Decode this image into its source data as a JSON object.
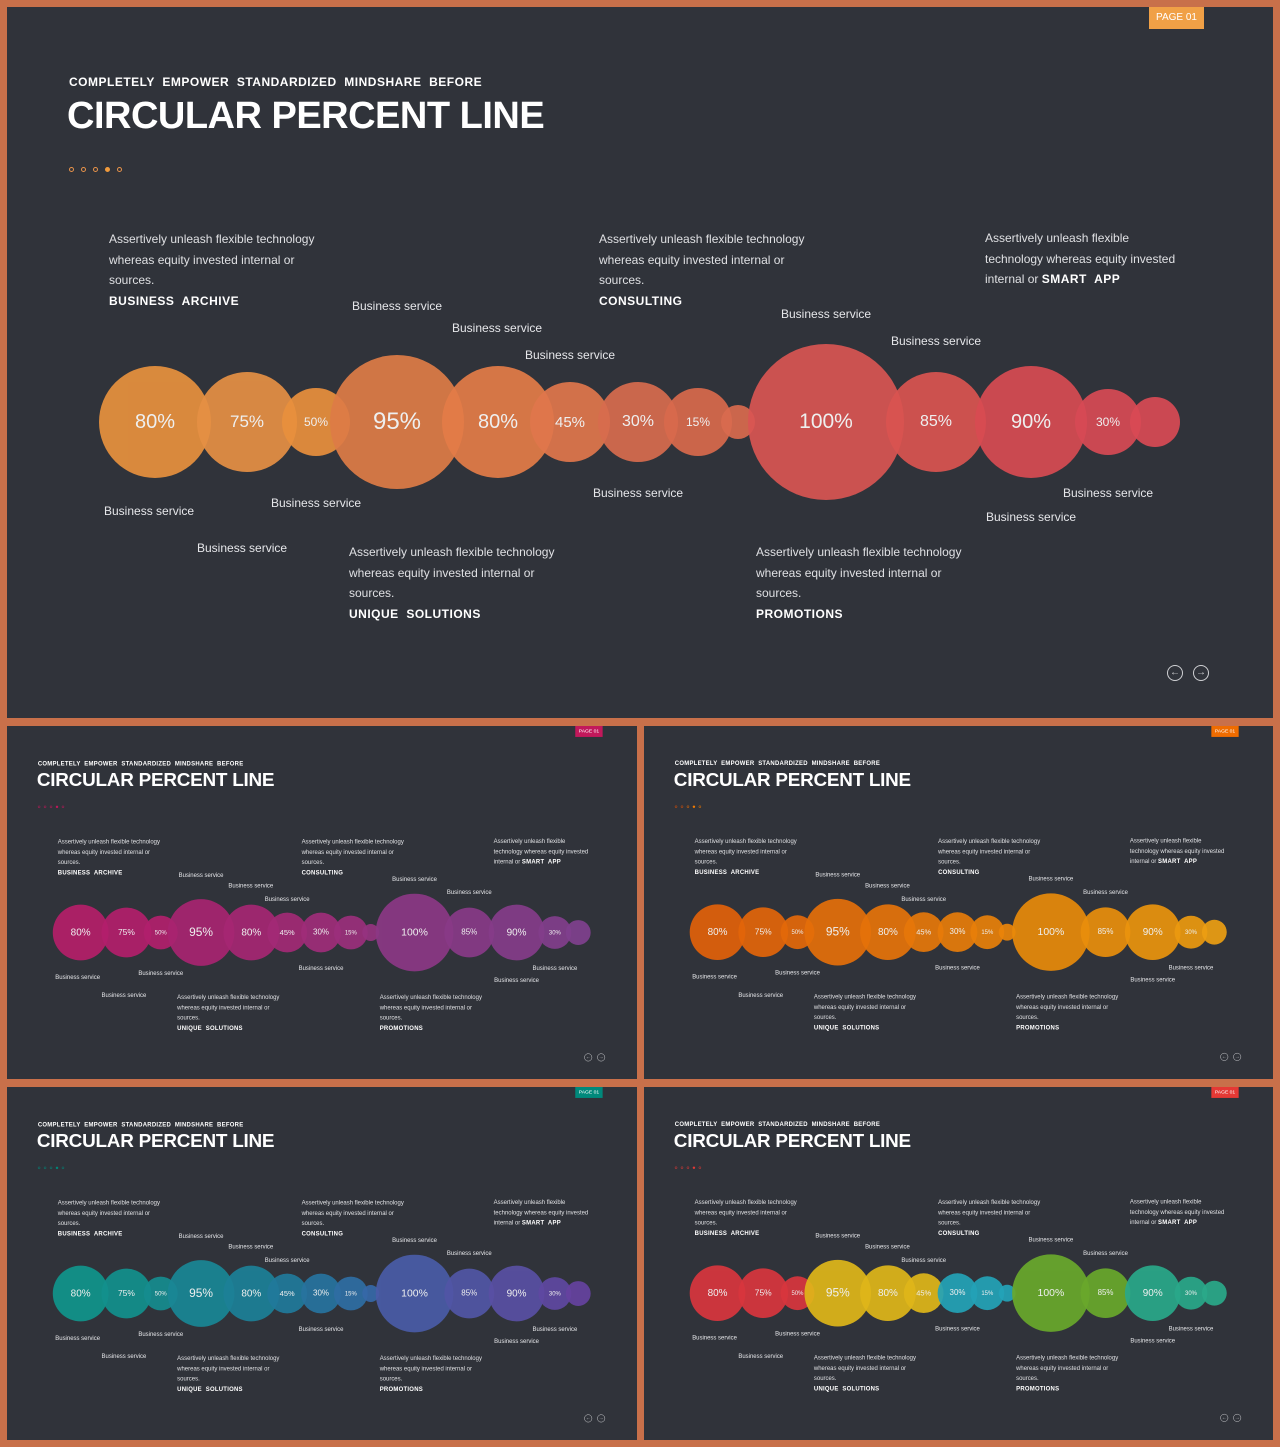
{
  "subtitle": "COMPLETELY  EMPOWER  STANDARDIZED  MINDSHARE  BEFORE",
  "title": "CIRCULAR PERCENT LINE",
  "page_badge": "PAGE 01",
  "bubble_values": [
    "80%",
    "75%",
    "50%",
    "95%",
    "80%",
    "45%",
    "30%",
    "15%",
    "",
    "100%",
    "85%",
    "90%",
    "30%",
    ""
  ],
  "service_label": "Business service",
  "descriptions": [
    {
      "lines": "Assertively unleash flexible technology\nwhereas equity invested internal or\nsources.",
      "title": "BUSINESS  ARCHIVE"
    },
    {
      "lines": "Assertively unleash flexible technology\nwhereas equity invested internal or\nsources.",
      "title": "CONSULTING"
    },
    {
      "lines": "Assertively unleash flexible\ntechnology whereas equity invested\ninternal or ",
      "title": "SMART  APP"
    },
    {
      "lines": "Assertively unleash flexible technology\nwhereas equity invested internal or\nsources.",
      "title": "UNIQUE  SOLUTIONS"
    },
    {
      "lines": "Assertively unleash flexible technology\nwhereas equity invested internal or\nsources.",
      "title": "PROMOTIONS"
    }
  ],
  "nav": {
    "prev_icon": "arrow-left-circle-icon",
    "next_icon": "arrow-right-circle-icon"
  },
  "themes": [
    {
      "name": "orange-red",
      "badge": "#f0a046",
      "dots": [
        "#e8934a",
        "#e8934a",
        "#e8934a",
        "#f09a3c",
        "#e8934a"
      ],
      "colors": [
        "#e8913e",
        "#e69044",
        "#e9903d",
        "#de7c46",
        "#e47c48",
        "#e0774c",
        "#d86c4e",
        "#d96a4c",
        "#d96a4e",
        "#d95552",
        "#da5450",
        "#d84b52",
        "#d84a55",
        "#d94a55"
      ]
    },
    {
      "name": "magenta-purple",
      "badge": "#c2185b",
      "dots": [
        "#c2185b",
        "#c2185b",
        "#c2185b",
        "#c2185b",
        "#c2185b"
      ],
      "colors": [
        "#b61f6a",
        "#b41f6c",
        "#b2206d",
        "#a92471",
        "#a62773",
        "#a32a76",
        "#a02d7a",
        "#9c2f7c",
        "#963380",
        "#8c3886",
        "#893a88",
        "#863c8a",
        "#833e8c",
        "#80408e"
      ]
    },
    {
      "name": "orange",
      "badge": "#ef6c00",
      "dots": [
        "#e65100",
        "#e65100",
        "#ef6c00",
        "#f57c00",
        "#f57c00"
      ],
      "colors": [
        "#e2610a",
        "#e3650a",
        "#e4690a",
        "#e56f0a",
        "#e6730a",
        "#e7780a",
        "#e87c0a",
        "#e9800a",
        "#ea840a",
        "#e98a0a",
        "#ea8f0c",
        "#eb940e",
        "#ec9a10",
        "#ed9e12"
      ]
    },
    {
      "name": "teal-indigo",
      "badge": "#00897b",
      "dots": [
        "#00897b",
        "#00897b",
        "#00897b",
        "#00897b",
        "#00897b"
      ],
      "colors": [
        "#11958c",
        "#13918e",
        "#168d90",
        "#1a8796",
        "#1d8198",
        "#217a9c",
        "#2874a0",
        "#2f6ea4",
        "#3668a8",
        "#4a5ca8",
        "#5256a6",
        "#5a50a4",
        "#6048a2",
        "#6642a0"
      ]
    },
    {
      "name": "rainbow",
      "badge": "#e53935",
      "dots": [
        "#e53935",
        "#e53935",
        "#e53935",
        "#e53935",
        "#e53935"
      ],
      "colors": [
        "#d9363e",
        "#d9363e",
        "#d9363e",
        "#e0b71a",
        "#e0b71a",
        "#e0b71a",
        "#24a3b8",
        "#24a3b8",
        "#24a3b8",
        "#6aa92c",
        "#6aa92c",
        "#2aa98a",
        "#2aa98a",
        "#2aa98a"
      ]
    }
  ]
}
